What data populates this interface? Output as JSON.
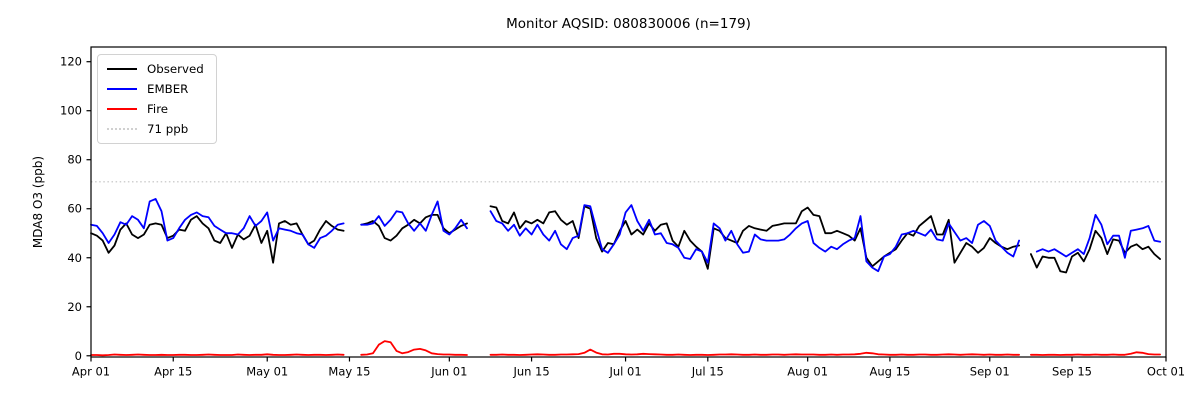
{
  "figure": {
    "title": "Monitor AQSID: 080830006 (n=179)",
    "ylabel": "MDA8 O3 (ppb)",
    "background": "#ffffff",
    "frame_color": "#000000"
  },
  "legend": {
    "position": "upper-left",
    "items": [
      {
        "label": "Observed",
        "color": "#000000",
        "style": "solid"
      },
      {
        "label": "EMBER",
        "color": "#0000ff",
        "style": "solid"
      },
      {
        "label": "Fire",
        "color": "#ff0000",
        "style": "solid"
      },
      {
        "label": "71 ppb",
        "color": "#d0d0d0",
        "style": "dotted"
      }
    ]
  },
  "chart_data": {
    "type": "line",
    "title": "Monitor AQSID: 080830006 (n=179)",
    "xlabel": "",
    "ylabel": "MDA8 O3 (ppb)",
    "x_description": "daily values; index i = days after Apr 01; null = missing day (gaps around May 15, Jun 05-07, Sep 07-08)",
    "xlim_days": [
      0,
      183
    ],
    "ylim": [
      -0.5,
      126
    ],
    "grid": false,
    "xticks": [
      {
        "day": 0,
        "label": "Apr 01"
      },
      {
        "day": 14,
        "label": "Apr 15"
      },
      {
        "day": 30,
        "label": "May 01"
      },
      {
        "day": 44,
        "label": "May 15"
      },
      {
        "day": 61,
        "label": "Jun 01"
      },
      {
        "day": 75,
        "label": "Jun 15"
      },
      {
        "day": 91,
        "label": "Jul 01"
      },
      {
        "day": 105,
        "label": "Jul 15"
      },
      {
        "day": 122,
        "label": "Aug 01"
      },
      {
        "day": 136,
        "label": "Aug 15"
      },
      {
        "day": 153,
        "label": "Sep 01"
      },
      {
        "day": 167,
        "label": "Sep 15"
      },
      {
        "day": 183,
        "label": "Oct 01"
      }
    ],
    "yticks": [
      0,
      20,
      40,
      60,
      80,
      100,
      120
    ],
    "threshold_line": {
      "value": 71,
      "label": "71 ppb",
      "color": "#d0d0d0",
      "style": "dotted"
    },
    "series": [
      {
        "name": "Observed",
        "color": "#000000",
        "values": [
          50,
          49,
          47,
          42,
          45,
          51.5,
          54,
          49.5,
          48,
          49.5,
          53.5,
          54,
          53.5,
          48,
          49,
          51.5,
          51,
          55.5,
          57,
          54,
          52,
          47,
          46,
          50,
          44,
          49.5,
          47.5,
          49,
          53.5,
          46,
          51,
          38,
          54,
          55,
          53.5,
          54,
          49.5,
          45.5,
          47,
          51.5,
          55,
          53,
          51.5,
          51,
          null,
          null,
          53.5,
          54,
          55,
          53,
          48,
          47,
          49,
          52,
          53.5,
          55.5,
          54,
          56.5,
          57.5,
          57.5,
          52,
          50,
          51.5,
          53,
          54,
          null,
          null,
          null,
          61,
          60.5,
          55,
          54,
          58.5,
          52,
          55,
          54,
          55.5,
          54,
          58.5,
          59,
          55.5,
          53.5,
          55,
          48,
          61,
          60,
          48,
          42.5,
          46,
          45.5,
          51,
          55,
          49.5,
          51.5,
          49.5,
          54,
          51,
          53.5,
          54,
          47,
          44.5,
          51,
          47,
          44.5,
          42.5,
          35.5,
          52,
          51,
          48,
          47,
          46,
          51,
          53,
          52,
          51.5,
          51,
          53,
          53.5,
          54,
          54,
          54,
          59,
          60.5,
          57.5,
          57,
          50,
          50,
          51,
          50,
          49,
          47,
          52,
          40,
          36.5,
          38.5,
          40.5,
          42,
          43.5,
          47,
          50,
          49,
          53,
          55,
          57,
          49.5,
          49.5,
          55.5,
          38,
          42,
          46,
          44.5,
          42,
          44,
          48,
          46,
          44.5,
          43.5,
          44.5,
          45,
          null,
          41.5,
          36,
          40.5,
          40,
          40,
          34.5,
          34,
          40.5,
          42,
          38.5,
          43.5,
          51,
          48,
          41.5,
          47.5,
          47,
          42,
          44.5,
          45.5,
          43.5,
          44.5,
          41.5,
          39.5
        ]
      },
      {
        "name": "EMBER",
        "color": "#0000ff",
        "values": [
          53.5,
          53,
          50,
          46,
          49.5,
          54.5,
          53.5,
          57,
          55.5,
          52,
          63,
          64,
          59,
          47,
          48,
          52,
          55.5,
          57.5,
          58.5,
          57,
          56.5,
          53,
          51.5,
          50,
          50,
          49.5,
          52,
          57,
          53,
          55,
          58.5,
          47,
          52,
          51.5,
          51,
          50,
          49.5,
          45.5,
          44,
          48,
          49,
          51,
          53.5,
          54,
          null,
          null,
          53.5,
          53.5,
          54,
          57,
          53,
          55.5,
          59,
          58.5,
          54,
          51,
          54,
          51,
          57.5,
          63,
          51,
          49.5,
          52,
          55.5,
          52,
          null,
          null,
          null,
          59,
          55,
          54,
          51,
          53.5,
          49,
          52,
          49.5,
          53.5,
          49.5,
          47,
          51,
          45.5,
          43.5,
          48,
          49,
          61.5,
          61,
          52,
          43.5,
          42,
          45.5,
          49.5,
          58.5,
          61.5,
          55,
          51,
          55.5,
          49.5,
          50,
          46,
          45.5,
          44,
          40,
          39.5,
          43.5,
          42.5,
          38,
          54,
          52,
          47,
          51,
          45.5,
          42,
          42.5,
          49.5,
          47.5,
          47,
          47,
          47,
          47.5,
          49.5,
          52,
          54,
          55,
          46,
          44,
          42.5,
          44.5,
          43.5,
          45.5,
          47,
          48,
          57,
          38.5,
          36,
          34.5,
          40.5,
          41.5,
          44.5,
          49.5,
          50,
          51,
          50,
          49,
          51.5,
          47.5,
          47,
          54,
          50.5,
          47,
          48,
          46,
          53.5,
          55,
          53,
          47,
          44.5,
          42,
          40.5,
          47,
          null,
          null,
          42.5,
          43.5,
          42.5,
          43.5,
          42,
          40.5,
          42,
          43.5,
          41.5,
          48,
          57.5,
          53.5,
          45.5,
          49,
          49,
          40,
          51,
          51.5,
          52,
          53,
          47,
          46.5
        ]
      },
      {
        "name": "Fire",
        "color": "#ff0000",
        "values": [
          0.3,
          0.3,
          0.2,
          0.3,
          0.5,
          0.4,
          0.3,
          0.4,
          0.5,
          0.4,
          0.3,
          0.3,
          0.4,
          0.3,
          0.3,
          0.4,
          0.4,
          0.3,
          0.3,
          0.4,
          0.5,
          0.4,
          0.3,
          0.3,
          0.3,
          0.5,
          0.4,
          0.3,
          0.4,
          0.4,
          0.6,
          0.4,
          0.3,
          0.3,
          0.4,
          0.5,
          0.4,
          0.3,
          0.4,
          0.4,
          0.3,
          0.4,
          0.5,
          0.4,
          null,
          null,
          0.4,
          0.5,
          1,
          4.5,
          6,
          5.5,
          2,
          1,
          1.5,
          2.5,
          2.8,
          2.2,
          1,
          0.7,
          0.5,
          0.5,
          0.4,
          0.4,
          0.3,
          null,
          null,
          null,
          0.4,
          0.4,
          0.5,
          0.4,
          0.4,
          0.3,
          0.4,
          0.5,
          0.6,
          0.5,
          0.4,
          0.4,
          0.5,
          0.5,
          0.6,
          0.7,
          1.2,
          2.5,
          1.3,
          0.6,
          0.5,
          0.8,
          0.8,
          0.6,
          0.5,
          0.6,
          0.8,
          0.7,
          0.6,
          0.5,
          0.4,
          0.4,
          0.5,
          0.4,
          0.3,
          0.4,
          0.4,
          0.3,
          0.4,
          0.5,
          0.5,
          0.6,
          0.5,
          0.4,
          0.4,
          0.5,
          0.4,
          0.4,
          0.5,
          0.5,
          0.4,
          0.5,
          0.6,
          0.5,
          0.5,
          0.5,
          0.4,
          0.4,
          0.5,
          0.4,
          0.5,
          0.5,
          0.6,
          0.8,
          1.2,
          1,
          0.6,
          0.5,
          0.4,
          0.4,
          0.5,
          0.4,
          0.4,
          0.5,
          0.5,
          0.4,
          0.4,
          0.5,
          0.6,
          0.5,
          0.4,
          0.5,
          0.6,
          0.5,
          0.4,
          0.5,
          0.4,
          0.4,
          0.5,
          0.4,
          0.4,
          null,
          0.4,
          0.4,
          0.3,
          0.4,
          0.4,
          0.3,
          0.4,
          0.4,
          0.5,
          0.4,
          0.4,
          0.5,
          0.4,
          0.4,
          0.5,
          0.4,
          0.4,
          0.8,
          1.4,
          1.2,
          0.7,
          0.5,
          0.5
        ]
      }
    ]
  }
}
